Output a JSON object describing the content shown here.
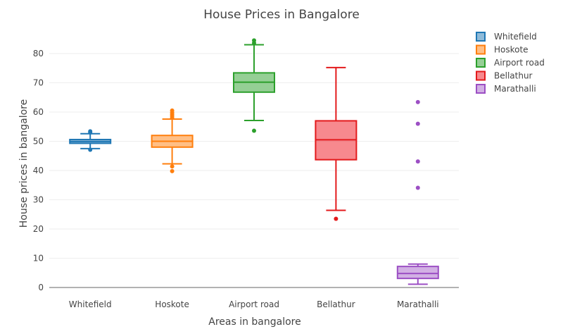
{
  "chart_data": {
    "type": "box",
    "title": "House Prices in Bangalore",
    "xlabel": "Areas in bangalore",
    "ylabel": "House prices in bangalore",
    "ylim": [
      0,
      85
    ],
    "yticks": [
      0,
      10,
      20,
      30,
      40,
      50,
      60,
      70,
      80
    ],
    "grid": true,
    "legend_position": "right",
    "categories": [
      "Whitefield",
      "Hoskote",
      "Airport road",
      "Bellathur",
      "Marathalli"
    ],
    "series": [
      {
        "name": "Whitefield",
        "color": "#1f77b4",
        "fill": "rgba(31,119,180,0.5)",
        "lowerfence": 47.5,
        "q1": 49.3,
        "median": 49.9,
        "q3": 50.6,
        "upperfence": 52.6,
        "outliers": [
          47.1,
          53.0,
          53.4
        ]
      },
      {
        "name": "Hoskote",
        "color": "#ff7f0e",
        "fill": "rgba(255,127,14,0.5)",
        "lowerfence": 42.3,
        "q1": 48.0,
        "median": 50.0,
        "q3": 52.0,
        "upperfence": 57.6,
        "outliers": [
          39.8,
          41.4,
          58.0,
          58.6,
          59.2,
          59.8,
          60.5
        ]
      },
      {
        "name": "Airport road",
        "color": "#2ca02c",
        "fill": "rgba(44,160,44,0.5)",
        "lowerfence": 57.1,
        "q1": 66.8,
        "median": 70.2,
        "q3": 73.4,
        "upperfence": 83.0,
        "outliers": [
          53.6,
          83.6,
          84.5
        ]
      },
      {
        "name": "Bellathur",
        "color": "#e31a1c",
        "fill": "rgba(240,40,50,0.55)",
        "lowerfence": 26.4,
        "q1": 43.7,
        "median": 50.5,
        "q3": 57.0,
        "upperfence": 75.2,
        "outliers": [
          23.5
        ]
      },
      {
        "name": "Marathalli",
        "color": "#9c4fc4",
        "fill": "rgba(156,79,196,0.45)",
        "lowerfence": 1.1,
        "q1": 3.1,
        "median": 4.8,
        "q3": 7.2,
        "upperfence": 8.0,
        "outliers": [
          34.1,
          43.1,
          56.0,
          63.4
        ]
      }
    ]
  }
}
